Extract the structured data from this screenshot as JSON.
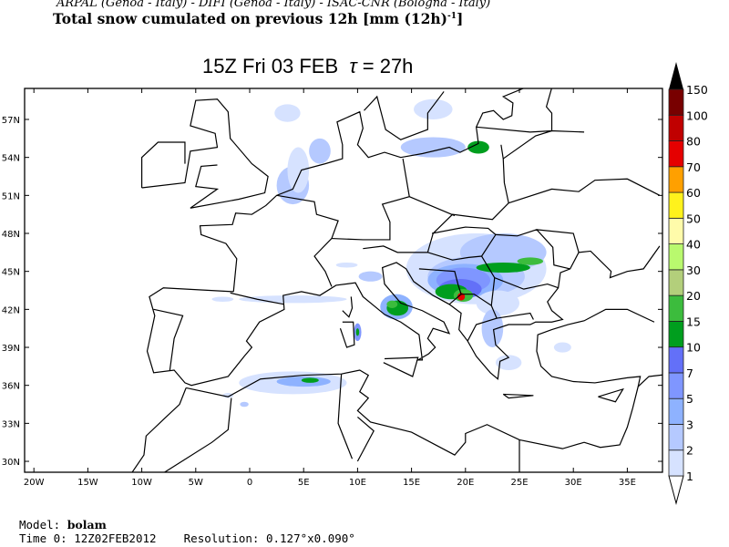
{
  "header": {
    "credits": "ARPAL (Genoa - Italy)  -  DIFI (Genoa - Italy)  -  ISAC-CNR (Bologna - Italy)",
    "title": "Total snow cumulated on previous 12h [mm (12h)",
    "title_sup": "-1",
    "title_end": "]",
    "valid_time": "15Z Fri 03 FEB",
    "tau_symbol": "τ",
    "tau_value": "= 27h"
  },
  "map": {
    "lat_labels": [
      "57N",
      "54N",
      "51N",
      "48N",
      "45N",
      "42N",
      "39N",
      "36N",
      "33N",
      "30N"
    ],
    "lat_values": [
      57,
      54,
      51,
      48,
      45,
      42,
      39,
      36,
      33,
      30
    ],
    "lon_labels": [
      "20W",
      "15W",
      "10W",
      "5W",
      "0",
      "5E",
      "10E",
      "15E",
      "20E",
      "25E",
      "30E",
      "35E"
    ],
    "lon_values": [
      -20,
      -15,
      -10,
      -5,
      0,
      5,
      10,
      15,
      20,
      25,
      30,
      35
    ]
  },
  "colorbar": {
    "labels": [
      "1",
      "2",
      "3",
      "5",
      "7",
      "10",
      "15",
      "20",
      "30",
      "40",
      "50",
      "60",
      "70",
      "80",
      "100",
      "150"
    ],
    "colors": [
      "#d6e2ff",
      "#b5c9ff",
      "#8eb2ff",
      "#7f96ff",
      "#6370f8",
      "#009e1e",
      "#3cbc3d",
      "#b3cf7b",
      "#b9f96e",
      "#fffbaa",
      "#fff21c",
      "#ffa000",
      "#e50000",
      "#c00000",
      "#780000"
    ]
  },
  "footer": {
    "model_label": "Model:",
    "model_value": "bolam",
    "time0_label": "Time 0:",
    "time0_value": "12Z02FEB2012",
    "resolution_label": "Resolution:",
    "resolution_value": "0.127°x0.090°"
  }
}
